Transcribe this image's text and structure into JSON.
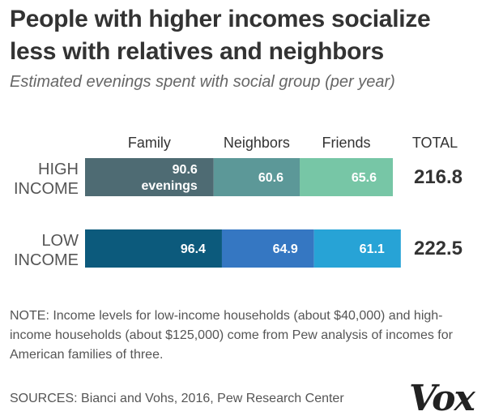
{
  "title": "People with higher incomes socialize less with relatives and neighbors",
  "subtitle": "Estimated evenings spent with social group (per year)",
  "chart_data": {
    "type": "bar",
    "orientation": "horizontal",
    "stacked": true,
    "categories": [
      "HIGH INCOME",
      "LOW INCOME"
    ],
    "series": [
      {
        "name": "Family",
        "values": [
          90.6,
          96.4
        ],
        "colors": [
          "#4e6b73",
          "#0c5a7c"
        ]
      },
      {
        "name": "Neighbors",
        "values": [
          60.6,
          64.9
        ],
        "colors": [
          "#5c9898",
          "#3577c2"
        ]
      },
      {
        "name": "Friends",
        "values": [
          65.6,
          61.1
        ],
        "colors": [
          "#77c6a6",
          "#27a3d6"
        ]
      }
    ],
    "totals": [
      216.8,
      222.5
    ],
    "total_label": "TOTAL",
    "unit_label": "evenings",
    "value_text_color": "#ffffff"
  },
  "note": "NOTE: Income levels for low-income households (about $40,000) and high-income households (about $125,000) come from Pew analysis of incomes for American families of three.",
  "sources": "SOURCES: Bianci and Vohs, 2016, Pew Research Center",
  "logo": "Vox"
}
